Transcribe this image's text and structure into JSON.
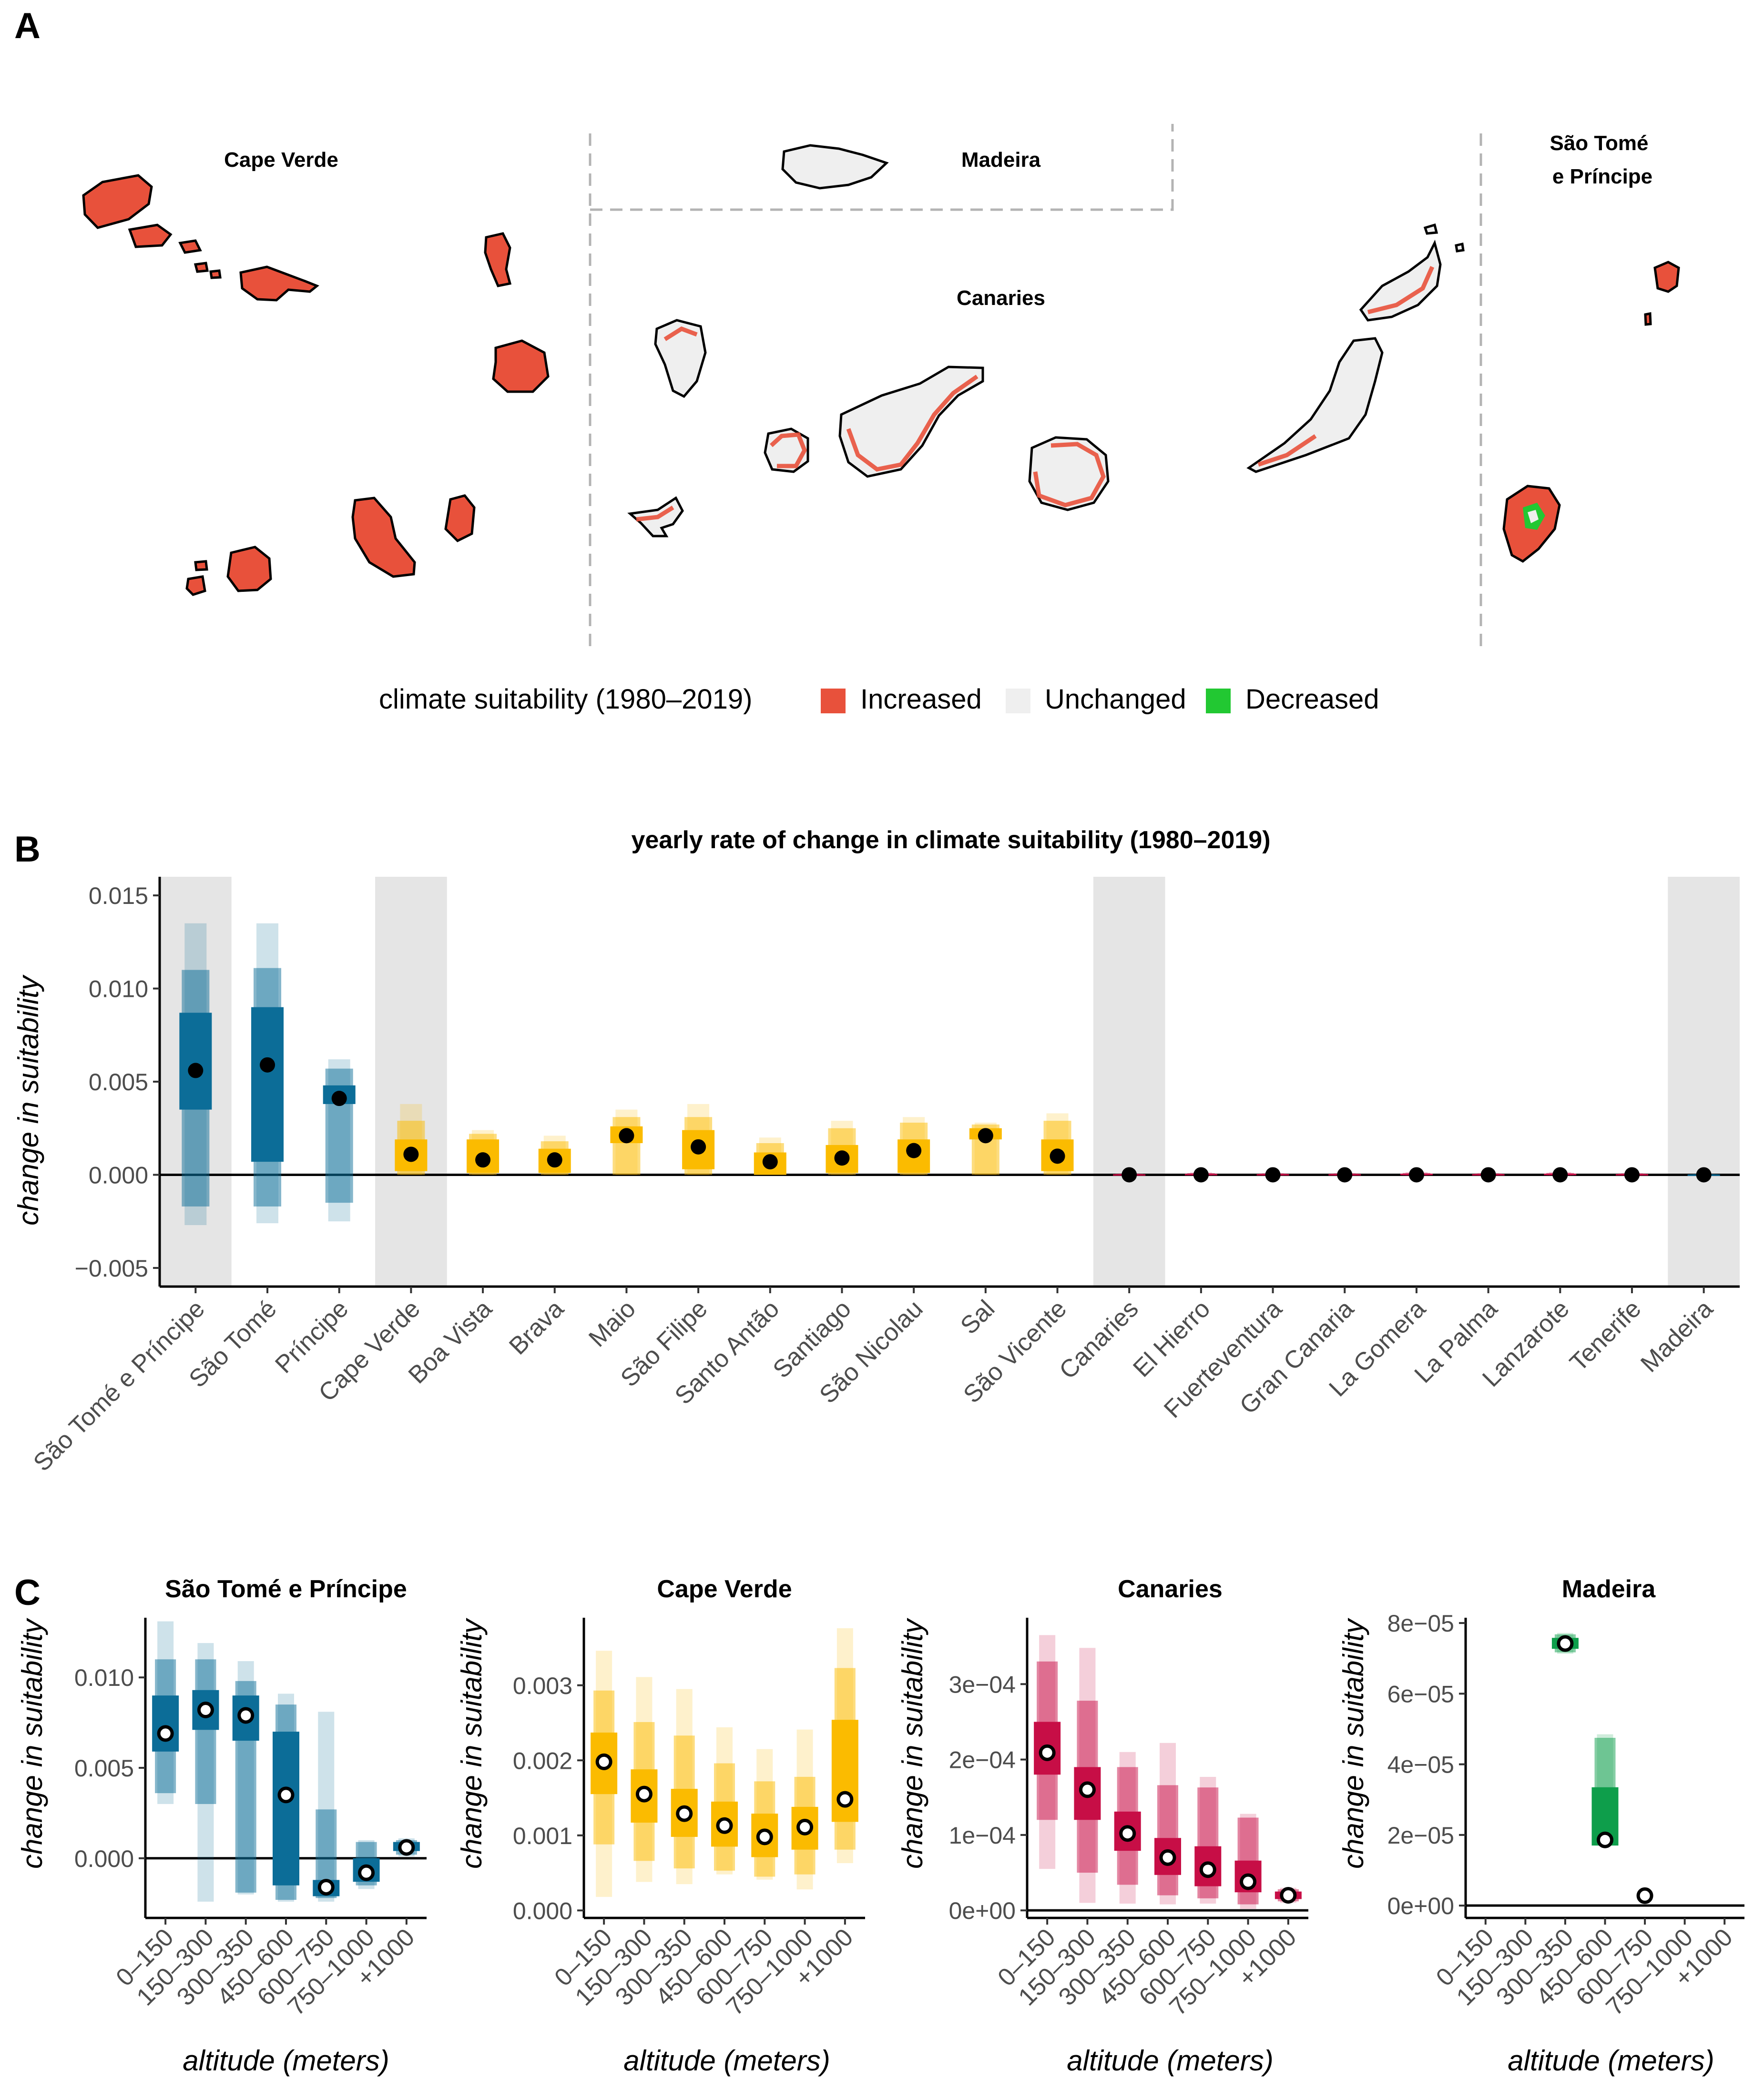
{
  "panel_letters": {
    "a": "A",
    "b": "B",
    "c": "C"
  },
  "map": {
    "regions": {
      "cape_verde": "Cape Verde",
      "madeira": "Madeira",
      "canaries": "Canaries",
      "stp_line1": "São Tomé",
      "stp_line2": "e Príncipe"
    },
    "legend": {
      "title": "climate suitability (1980–2019)",
      "increased": "Increased",
      "unchanged": "Unchanged",
      "decreased": "Decreased"
    },
    "colors": {
      "increased": "#e8513b",
      "unchanged": "#efefef",
      "decreased": "#22c832"
    }
  },
  "chart_data": [
    {
      "type": "pointrange",
      "panel": "B",
      "title": "yearly rate of change in climate suitability (1980–2019)",
      "xlabel": "",
      "ylabel": "change in suitability",
      "ylim": [
        -0.006,
        0.016
      ],
      "yticks": [
        -0.005,
        0.0,
        0.005,
        0.01,
        0.015
      ],
      "ytick_labels": [
        "−0.005",
        "0.000",
        "0.005",
        "0.010",
        "0.015"
      ],
      "zero_line": true,
      "categories": [
        "São Tomé e Príncipe",
        "São Tomé",
        "Príncipe",
        "Cape Verde",
        "Boa Vista",
        "Brava",
        "Maio",
        "São Filipe",
        "Santo Antão",
        "Santiago",
        "São Nicolau",
        "Sal",
        "São Vicente",
        "Canaries",
        "El Hierro",
        "Fuerteventura",
        "Gran Canaria",
        "La Gomera",
        "La Palma",
        "Lanzarote",
        "Tenerife",
        "Madeira"
      ],
      "group": [
        "stp",
        "stp",
        "stp",
        "cv",
        "cv",
        "cv",
        "cv",
        "cv",
        "cv",
        "cv",
        "cv",
        "cv",
        "cv",
        "can",
        "can",
        "can",
        "can",
        "can",
        "can",
        "can",
        "can",
        "mad"
      ],
      "highlighted": [
        "São Tomé e Príncipe",
        "Cape Verde",
        "Canaries",
        "Madeira"
      ],
      "median": [
        0.0056,
        0.0059,
        0.0041,
        0.0011,
        0.0008,
        0.0008,
        0.0021,
        0.0015,
        0.0007,
        0.0009,
        0.0013,
        0.0021,
        0.001,
        0.0,
        0.0,
        0.0,
        0.0,
        0.0,
        0.0,
        0.0,
        0.0,
        0.0
      ],
      "interval_50": [
        [
          0.0035,
          0.0087
        ],
        [
          0.0007,
          0.009
        ],
        [
          0.0038,
          0.0048
        ],
        [
          0.0002,
          0.0019
        ],
        [
          0.0001,
          0.0019
        ],
        [
          0.0001,
          0.0014
        ],
        [
          0.0017,
          0.0026
        ],
        [
          0.0003,
          0.0024
        ],
        [
          0.0,
          0.0012
        ],
        [
          0.0001,
          0.0016
        ],
        [
          0.0001,
          0.0019
        ],
        [
          0.0019,
          0.0025
        ],
        [
          0.0002,
          0.0019
        ],
        [
          -2e-05,
          3e-05
        ],
        [
          -2e-05,
          5e-05
        ],
        [
          -2e-05,
          4e-05
        ],
        [
          -2e-05,
          4e-05
        ],
        [
          -2e-05,
          6e-05
        ],
        [
          -2e-05,
          4e-05
        ],
        [
          -2e-05,
          6e-05
        ],
        [
          -2e-05,
          4e-05
        ],
        [
          -2e-05,
          2e-05
        ]
      ],
      "interval_80": [
        [
          -0.0017,
          0.011
        ],
        [
          -0.0017,
          0.0111
        ],
        [
          -0.0015,
          0.0057
        ],
        [
          0.0,
          0.0029
        ],
        [
          0.0,
          0.0022
        ],
        [
          0.0,
          0.0018
        ],
        [
          0.0,
          0.0031
        ],
        [
          0.0,
          0.0031
        ],
        [
          0.0,
          0.0017
        ],
        [
          0.0,
          0.0025
        ],
        [
          0.0,
          0.0028
        ],
        [
          0.0,
          0.0027
        ],
        [
          0.0,
          0.0029
        ],
        [
          -3e-05,
          5e-05
        ],
        [
          -3e-05,
          9e-05
        ],
        [
          -3e-05,
          7e-05
        ],
        [
          -3e-05,
          7e-05
        ],
        [
          -3e-05,
          0.0001
        ],
        [
          -3e-05,
          7e-05
        ],
        [
          -3e-05,
          0.0001
        ],
        [
          -3e-05,
          7e-05
        ],
        [
          -3e-05,
          3e-05
        ]
      ],
      "interval_95": [
        [
          -0.0027,
          0.0135
        ],
        [
          -0.0026,
          0.0135
        ],
        [
          -0.0025,
          0.0062
        ],
        [
          0.0,
          0.0038
        ],
        [
          0.0,
          0.0024
        ],
        [
          0.0,
          0.0021
        ],
        [
          0.0,
          0.0035
        ],
        [
          0.0,
          0.0038
        ],
        [
          0.0,
          0.002
        ],
        [
          0.0,
          0.0029
        ],
        [
          0.0,
          0.0031
        ],
        [
          0.0,
          0.0028
        ],
        [
          0.0,
          0.0033
        ],
        [
          -5e-05,
          7e-05
        ],
        [
          -5e-05,
          0.00013
        ],
        [
          -5e-05,
          0.0001
        ],
        [
          -5e-05,
          0.0001
        ],
        [
          -5e-05,
          0.00014
        ],
        [
          -5e-05,
          0.0001
        ],
        [
          -5e-05,
          0.00014
        ],
        [
          -5e-05,
          0.0001
        ],
        [
          -5e-05,
          5e-05
        ]
      ]
    },
    {
      "type": "pointrange",
      "panel": "C",
      "title": "São Tomé e Príncipe",
      "xlabel": "altitude (meters)",
      "ylabel": "change in suitability",
      "color": "#0c6d98",
      "categories": [
        "0–150",
        "150–300",
        "300–350",
        "450–600",
        "600–750",
        "750–1000",
        "+1000"
      ],
      "ylim": [
        -0.0033,
        0.0133
      ],
      "yticks": [
        0.0,
        0.005,
        0.01
      ],
      "ytick_labels": [
        "0.000",
        "0.005",
        "0.010"
      ],
      "zero_line": true,
      "median": [
        0.0069,
        0.0082,
        0.0079,
        0.0035,
        -0.0016,
        -0.0008,
        0.0006
      ],
      "interval_50": [
        [
          0.0059,
          0.009
        ],
        [
          0.0071,
          0.0093
        ],
        [
          0.0065,
          0.009
        ],
        [
          -0.0015,
          0.007
        ],
        [
          -0.0021,
          -0.0012
        ],
        [
          -0.0013,
          0.0
        ],
        [
          0.0004,
          0.0009
        ]
      ],
      "interval_80": [
        [
          0.0036,
          0.011
        ],
        [
          0.003,
          0.011
        ],
        [
          -0.0019,
          0.0098
        ],
        [
          -0.0023,
          0.0085
        ],
        [
          -0.0022,
          0.0027
        ],
        [
          -0.0015,
          0.0009
        ],
        [
          0.0002,
          0.001
        ]
      ],
      "interval_95": [
        [
          0.003,
          0.0131
        ],
        [
          -0.0024,
          0.0119
        ],
        [
          -0.002,
          0.0109
        ],
        [
          -0.0024,
          0.0091
        ],
        [
          -0.0024,
          0.0081
        ],
        [
          -0.0017,
          0.001
        ],
        [
          0.0001,
          0.0011
        ]
      ]
    },
    {
      "type": "pointrange",
      "panel": "C",
      "title": "Cape Verde",
      "xlabel": "altitude (meters)",
      "ylabel": "change in suitability",
      "color": "#fbbb00",
      "categories": [
        "0–150",
        "150–300",
        "300–350",
        "450–600",
        "600–750",
        "750–1000",
        "+1000"
      ],
      "ylim": [
        -0.0001,
        0.0039
      ],
      "yticks": [
        0.0,
        0.001,
        0.002,
        0.003
      ],
      "ytick_labels": [
        "0.000",
        "0.001",
        "0.002",
        "0.003"
      ],
      "zero_line": false,
      "median": [
        0.00198,
        0.00155,
        0.00129,
        0.00113,
        0.00098,
        0.00111,
        0.00148
      ],
      "interval_50": [
        [
          0.00155,
          0.00237
        ],
        [
          0.00117,
          0.00188
        ],
        [
          0.00098,
          0.00162
        ],
        [
          0.00085,
          0.00145
        ],
        [
          0.00071,
          0.00129
        ],
        [
          0.00081,
          0.00138
        ],
        [
          0.00118,
          0.00254
        ]
      ],
      "interval_80": [
        [
          0.00088,
          0.00293
        ],
        [
          0.00066,
          0.00251
        ],
        [
          0.00056,
          0.00233
        ],
        [
          0.00053,
          0.00196
        ],
        [
          0.00045,
          0.00172
        ],
        [
          0.00048,
          0.00178
        ],
        [
          0.00081,
          0.00323
        ]
      ],
      "interval_95": [
        [
          0.00018,
          0.00346
        ],
        [
          0.00038,
          0.00311
        ],
        [
          0.00035,
          0.00295
        ],
        [
          0.00048,
          0.00244
        ],
        [
          0.00041,
          0.00215
        ],
        [
          0.00028,
          0.00241
        ],
        [
          0.00063,
          0.00376
        ]
      ]
    },
    {
      "type": "pointrange",
      "panel": "C",
      "title": "Canaries",
      "xlabel": "altitude (meters)",
      "ylabel": "change in suitability",
      "color": "#c70e46",
      "categories": [
        "0–150",
        "150–300",
        "300–350",
        "450–600",
        "600–750",
        "750–1000",
        "+1000"
      ],
      "ylim": [
        -1e-05,
        0.000388
      ],
      "yticks": [
        0.0,
        0.0001,
        0.0002,
        0.0003
      ],
      "ytick_labels": [
        "0e+00",
        "1e−04",
        "2e−04",
        "3e−04"
      ],
      "zero_line": true,
      "median": [
        0.000209,
        0.00016,
        0.000102,
        7e-05,
        5.4e-05,
        3.8e-05,
        2e-05
      ],
      "interval_50": [
        [
          0.00018,
          0.00025
        ],
        [
          0.00012,
          0.00019
        ],
        [
          7.9e-05,
          0.000131
        ],
        [
          4.7e-05,
          9.6e-05
        ],
        [
          3.2e-05,
          8.5e-05
        ],
        [
          2.4e-05,
          6.6e-05
        ],
        [
          1.5e-05,
          2.5e-05
        ]
      ],
      "interval_80": [
        [
          0.00012,
          0.00033
        ],
        [
          5e-05,
          0.000278
        ],
        [
          3.4e-05,
          0.00019
        ],
        [
          2e-05,
          0.000166
        ],
        [
          1.6e-05,
          0.000163
        ],
        [
          8e-06,
          0.000123
        ],
        [
          1.2e-05,
          2.8e-05
        ]
      ],
      "interval_95": [
        [
          5.5e-05,
          0.000365
        ],
        [
          1e-05,
          0.000348
        ],
        [
          9e-06,
          0.00021
        ],
        [
          8e-06,
          0.000222
        ],
        [
          9e-06,
          0.000177
        ],
        [
          2e-06,
          0.000128
        ],
        [
          1e-05,
          3e-05
        ]
      ]
    },
    {
      "type": "pointrange",
      "panel": "C",
      "title": "Madeira",
      "xlabel": "altitude (meters)",
      "ylabel": "change in suitability",
      "color": "#0e9e4b",
      "categories": [
        "0–150",
        "150–300",
        "300–350",
        "450–600",
        "600–750",
        "750–1000",
        "+1000"
      ],
      "ylim": [
        -3.5e-06,
        8.15e-05
      ],
      "yticks": [
        0.0,
        2e-05,
        4e-05,
        6e-05,
        8e-05
      ],
      "ytick_labels": [
        "0e+00",
        "2e−05",
        "4e−05",
        "6e−05",
        "8e−05"
      ],
      "zero_line": true,
      "median": [
        null,
        null,
        7.42e-05,
        1.86e-05,
        2.8e-06,
        null,
        null
      ],
      "interval_50": [
        [
          null,
          null
        ],
        [
          null,
          null
        ],
        [
          7.27e-05,
          7.58e-05
        ],
        [
          1.7e-05,
          3.35e-05
        ],
        [
          null,
          null
        ],
        [
          null,
          null
        ],
        [
          null,
          null
        ]
      ],
      "interval_80": [
        [
          null,
          null
        ],
        [
          null,
          null
        ],
        [
          7.17e-05,
          7.68e-05
        ],
        [
          1.7e-05,
          4.75e-05
        ],
        [
          null,
          null
        ],
        [
          null,
          null
        ],
        [
          null,
          null
        ]
      ],
      "interval_95": [
        [
          null,
          null
        ],
        [
          null,
          null
        ],
        [
          7.13e-05,
          7.72e-05
        ],
        [
          1.7e-05,
          4.85e-05
        ],
        [
          null,
          null
        ],
        [
          null,
          null
        ],
        [
          null,
          null
        ]
      ]
    }
  ]
}
